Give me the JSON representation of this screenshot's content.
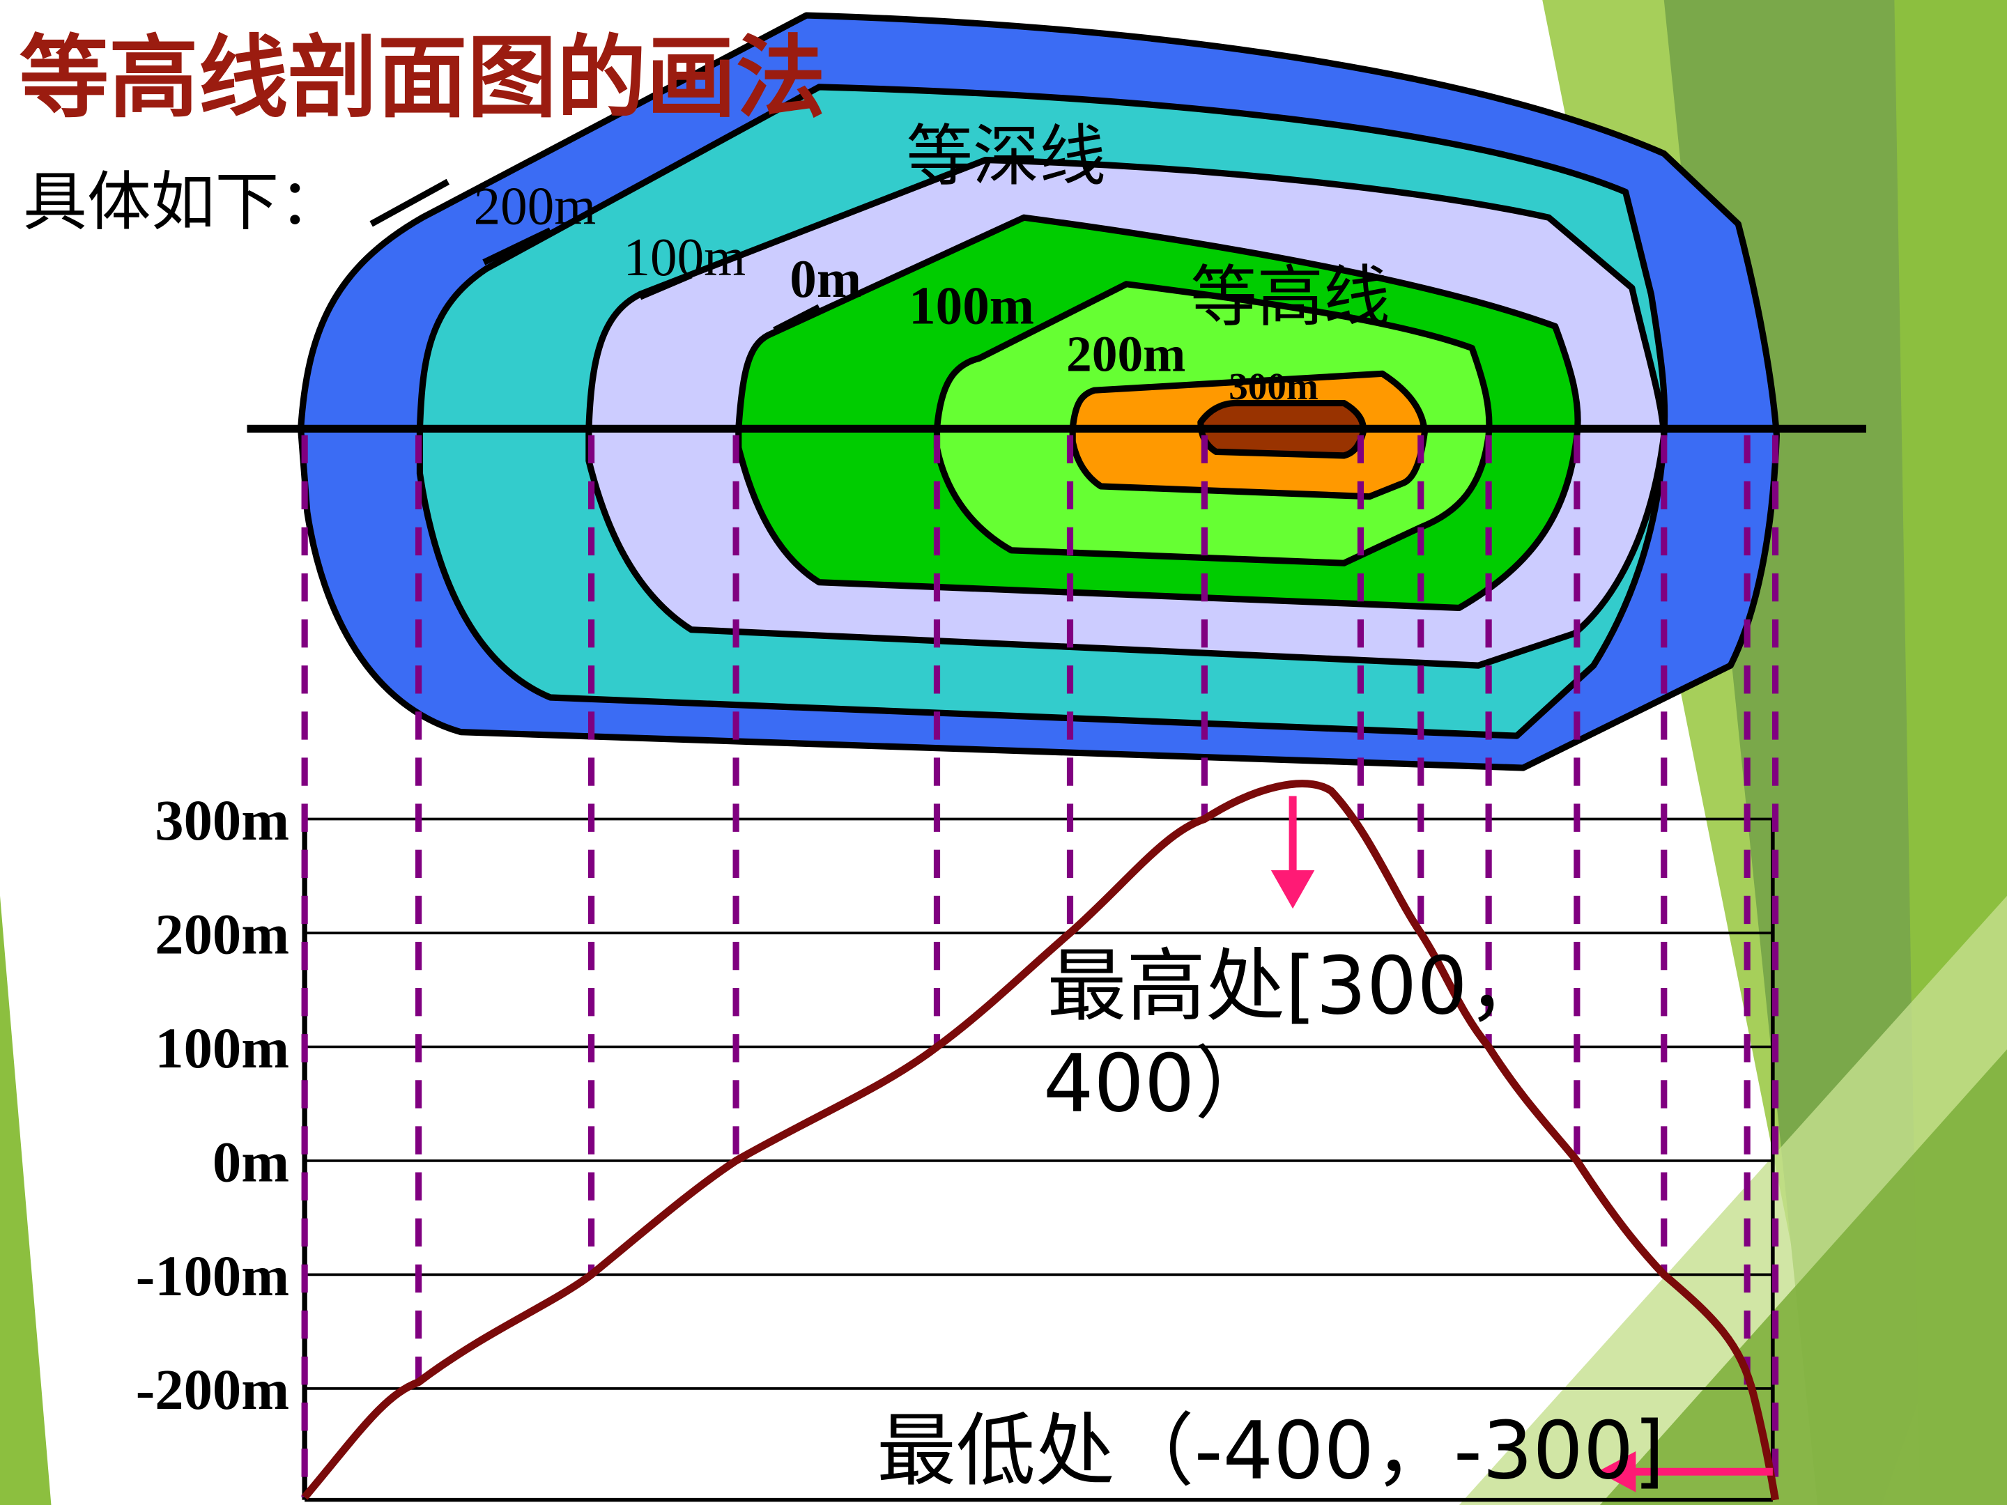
{
  "header": {
    "title": "等高线剖面图的画法",
    "subtitle": "具体如下："
  },
  "map": {
    "region_labels": [
      "等深线",
      "等高线"
    ],
    "contour_labels": [
      "200m",
      "100m",
      "0m",
      "100m",
      "200m",
      "300m"
    ]
  },
  "profile": {
    "axis_labels": [
      "300m",
      "200m",
      "100m",
      "0m",
      "-100m",
      "-200m"
    ]
  },
  "annotations": [
    {
      "lines": [
        "最高处[300，",
        "400）"
      ]
    },
    {
      "lines": [
        "最低处（-400，-300]"
      ]
    }
  ]
}
